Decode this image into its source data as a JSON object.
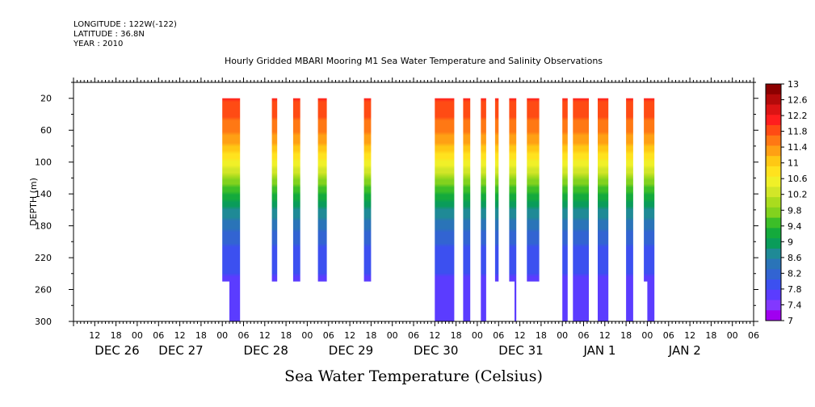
{
  "header": {
    "longitude": "LONGITUDE : 122W(-122)",
    "latitude": "LATITUDE : 36.8N",
    "year": "YEAR : 2010",
    "title": "Hourly Gridded MBARI Mooring M1 Sea Water Temperature and Salinity Observations"
  },
  "chart_data": {
    "type": "heatmap",
    "title": "Hourly Gridded MBARI Mooring M1 Sea Water Temperature and Salinity Observations",
    "xlabel": "",
    "ylabel": "DEPTH (m)",
    "colorbar_label": "Sea Water Temperature (Celsius)",
    "x_range_hours": [
      0,
      192
    ],
    "x_origin": "2010-12-26 06:00",
    "x_hour_ticks": [
      "12",
      "18",
      "00",
      "06",
      "12",
      "18",
      "00",
      "06",
      "12",
      "18",
      "00",
      "06",
      "12",
      "18",
      "00",
      "06",
      "12",
      "18",
      "00",
      "06",
      "12",
      "18",
      "00",
      "06",
      "12",
      "18",
      "00",
      "06",
      "12",
      "18",
      "00",
      "06"
    ],
    "x_day_labels": [
      {
        "label": "DEC 26",
        "hour": 6
      },
      {
        "label": "DEC 27",
        "hour": 24
      },
      {
        "label": "DEC 28",
        "hour": 48
      },
      {
        "label": "DEC 29",
        "hour": 72
      },
      {
        "label": "DEC 30",
        "hour": 96
      },
      {
        "label": "DEC 31",
        "hour": 120
      },
      {
        "label": "JAN  1",
        "hour": 144
      },
      {
        "label": "JAN  2",
        "hour": 168
      }
    ],
    "y_range": [
      300,
      0
    ],
    "y_ticks": [
      20,
      60,
      100,
      140,
      180,
      220,
      260,
      300
    ],
    "colorbar_levels": [
      "13",
      "12.6",
      "12.2",
      "11.8",
      "11.4",
      "11",
      "10.6",
      "10.2",
      "9.8",
      "9.4",
      "9",
      "8.6",
      "8.2",
      "7.8",
      "7.4",
      "7"
    ],
    "colorbar_min": 7,
    "colorbar_max": 13,
    "depth_top": 20,
    "surface_temp": 12.3,
    "thermocline_depth": 120,
    "deep_temp": 7.6,
    "columns": [
      {
        "start": 42,
        "end": 44,
        "bottom": 250
      },
      {
        "start": 44,
        "end": 47,
        "bottom": 300
      },
      {
        "start": 56,
        "end": 57.5,
        "bottom": 250
      },
      {
        "start": 62,
        "end": 64,
        "bottom": 250
      },
      {
        "start": 69,
        "end": 71.5,
        "bottom": 250
      },
      {
        "start": 82,
        "end": 84,
        "bottom": 250
      },
      {
        "start": 102,
        "end": 107.5,
        "bottom": 300
      },
      {
        "start": 110,
        "end": 112,
        "bottom": 300
      },
      {
        "start": 115,
        "end": 116.5,
        "bottom": 300
      },
      {
        "start": 119,
        "end": 120,
        "bottom": 250
      },
      {
        "start": 123,
        "end": 124.5,
        "bottom": 250
      },
      {
        "start": 124.5,
        "end": 125,
        "bottom": 300
      },
      {
        "start": 128,
        "end": 131.5,
        "bottom": 250
      },
      {
        "start": 138,
        "end": 139.5,
        "bottom": 300
      },
      {
        "start": 141,
        "end": 145.5,
        "bottom": 300
      },
      {
        "start": 148,
        "end": 151,
        "bottom": 300
      },
      {
        "start": 156,
        "end": 158,
        "bottom": 300
      },
      {
        "start": 161,
        "end": 162,
        "bottom": 250
      },
      {
        "start": 162,
        "end": 164,
        "bottom": 300
      }
    ]
  }
}
